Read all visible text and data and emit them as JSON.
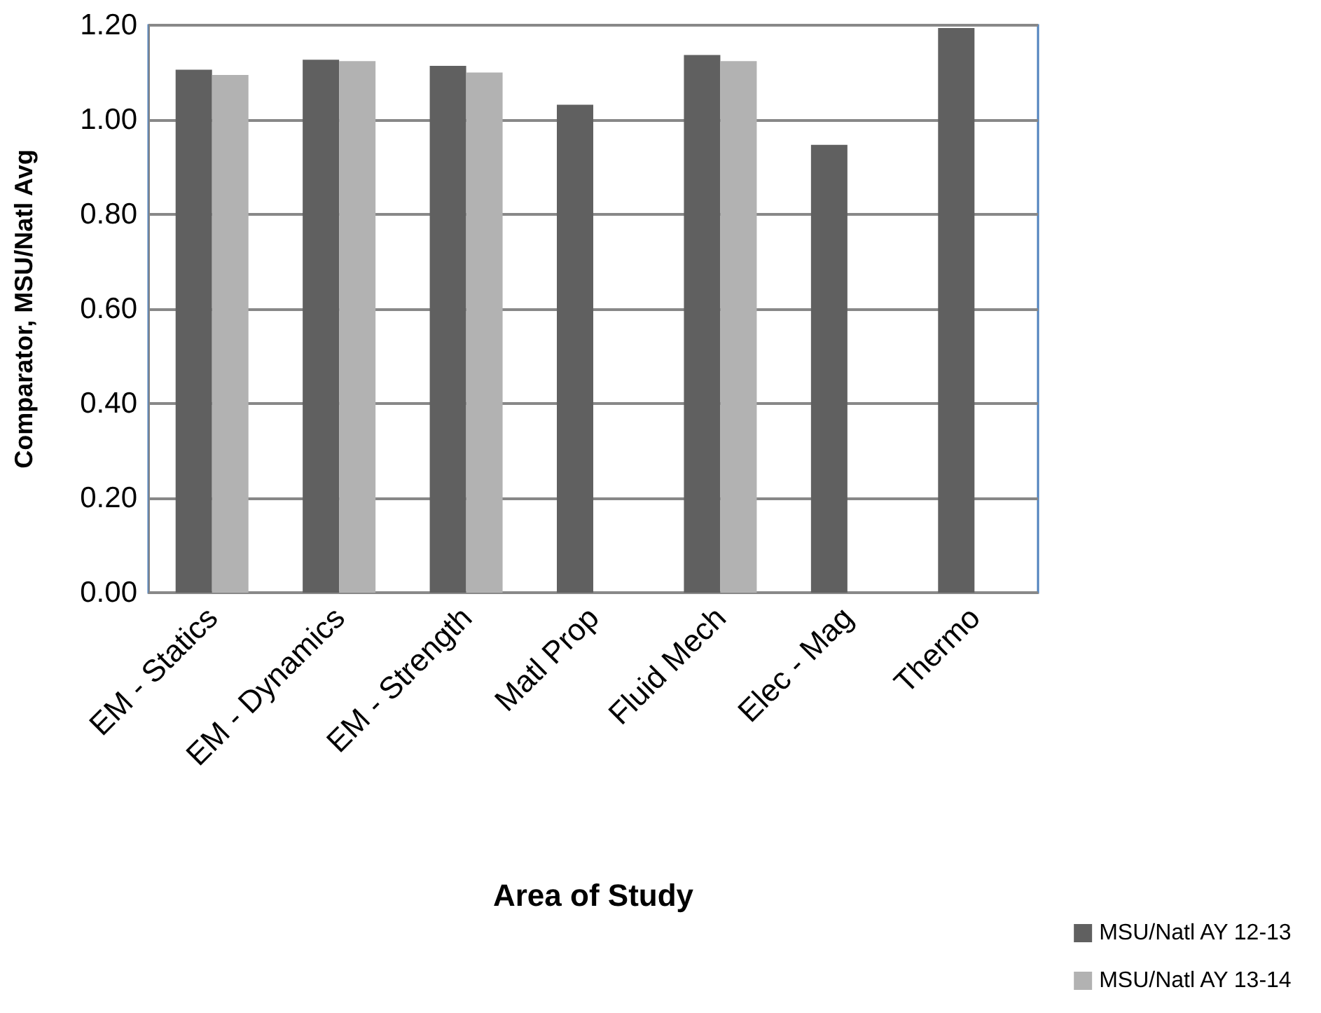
{
  "chart_data": {
    "type": "bar",
    "xlabel": "Area of Study",
    "ylabel": "Comparator, MSU/Natl Avg",
    "categories": [
      "EM - Statics",
      "EM - Dynamics",
      "EM - Strength",
      "Matl Prop",
      "Fluid Mech",
      "Elec - Mag",
      "Thermo"
    ],
    "series": [
      {
        "name": "MSU/Natl AY 12-13",
        "color": "#606060",
        "values": [
          1.106,
          1.127,
          1.114,
          1.032,
          1.137,
          0.947,
          1.194
        ]
      },
      {
        "name": "MSU/Natl AY 13-14",
        "color": "#b2b2b2",
        "values": [
          1.095,
          1.124,
          1.1,
          null,
          1.124,
          null,
          null
        ]
      }
    ],
    "ylim": [
      0,
      1.2
    ],
    "yticks": [
      {
        "value": 0,
        "label": "0.00"
      },
      {
        "value": 0.2,
        "label": "0.20"
      },
      {
        "value": 0.4,
        "label": "0.40"
      },
      {
        "value": 0.6,
        "label": "0.60"
      },
      {
        "value": 0.8,
        "label": "0.80"
      },
      {
        "value": 1.0,
        "label": "1.00"
      },
      {
        "value": 1.2,
        "label": "1.20"
      }
    ],
    "grid": "y",
    "legend": "bottom right"
  }
}
